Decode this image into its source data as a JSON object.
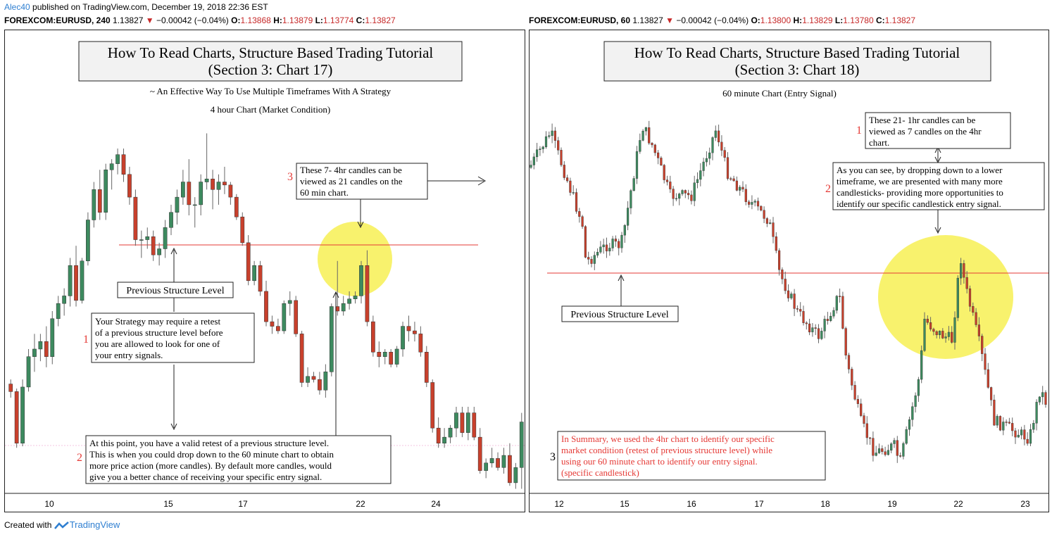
{
  "publisher": {
    "author": "Alec40",
    "text": "published on TradingView.com, December 19, 2018 22:36 EST"
  },
  "panels": [
    {
      "symbol": "FOREXCOM:EURUSD, 240",
      "price": "1.13827",
      "change": "−0.00042 (−0.04%)",
      "o": "1.13868",
      "h": "1.13879",
      "l": "1.13774",
      "c": "1.13827",
      "title_l1": "How To Read Charts, Structure Based Trading Tutorial",
      "title_l2": "(Section 3: Chart 17)",
      "subtitle": "~ An Effective Way To Use Multiple Timeframes With A Strategy",
      "subtitle2": "4 hour Chart (Market Condition)",
      "structure_label": "Previous Structure Level",
      "note1": [
        "Your Strategy may require a retest",
        "of a previous structure level before",
        "you are allowed to look for one of",
        "your entry signals."
      ],
      "note2": [
        "At this point, you have a valid retest of a previous structure level.",
        "This is when you could drop down to the 60 minute chart to obtain",
        "more price action (more candles). By default more candles, would",
        "give you a better chance of receiving your specific entry signal."
      ],
      "note3": [
        "These 7- 4hr candles can be",
        "viewed as 21 candles on the",
        "60 min chart."
      ],
      "n1": "1",
      "n2": "2",
      "n3": "3",
      "x_ticks": [
        "10",
        "15",
        "17",
        "22",
        "24"
      ]
    },
    {
      "symbol": "FOREXCOM:EURUSD, 60",
      "price": "1.13827",
      "change": "−0.00042 (−0.04%)",
      "o": "1.13800",
      "h": "1.13829",
      "l": "1.13780",
      "c": "1.13827",
      "title_l1": "How To Read Charts, Structure Based Trading Tutorial",
      "title_l2": "(Section 3: Chart 18)",
      "subtitle": "60 minute Chart (Entry Signal)",
      "structure_label": "Previous Structure Level",
      "note1": [
        "These 21- 1hr candles can be",
        "viewed as 7 candles on the 4hr",
        "chart."
      ],
      "note2": [
        "As you can see, by dropping down to a lower",
        "timeframe, we are presented with many more",
        "candlesticks- providing more opportunities to",
        "identify our specific candlestick entry signal."
      ],
      "note3": [
        "In Summary, we used the 4hr chart to identify our specific",
        "market condition (retest of previous structure level) while",
        "using our 60 minute chart to identify our entry signal.",
        "(specific candlestick)"
      ],
      "n1": "1",
      "n2": "2",
      "n3": "3",
      "x_ticks": [
        "12",
        "15",
        "16",
        "17",
        "18",
        "19",
        "22",
        "23"
      ]
    }
  ],
  "footer": {
    "created": "Created with",
    "brand": "TradingView"
  },
  "colors": {
    "up": "#3d8a5f",
    "down": "#c8402c",
    "structure": "#e53935",
    "highlight": "#f5ee3c"
  },
  "chart_data": [
    {
      "type": "candlestick",
      "series": [
        {
          "name": "EURUSD 240",
          "points": [
            [
              1.1387,
              1.139,
              1.1378,
              1.1382
            ],
            [
              1.1382,
              1.1384,
              1.1345,
              1.1348
            ],
            [
              1.1348,
              1.139,
              1.1346,
              1.1385
            ],
            [
              1.1385,
              1.141,
              1.1382,
              1.1405
            ],
            [
              1.1405,
              1.142,
              1.1395,
              1.141
            ],
            [
              1.141,
              1.142,
              1.1402,
              1.1415
            ],
            [
              1.1415,
              1.1425,
              1.1398,
              1.1405
            ],
            [
              1.1405,
              1.1435,
              1.14,
              1.143
            ],
            [
              1.143,
              1.1445,
              1.1425,
              1.144
            ],
            [
              1.144,
              1.145,
              1.1432,
              1.1445
            ],
            [
              1.1445,
              1.147,
              1.1438,
              1.1465
            ],
            [
              1.1465,
              1.1478,
              1.1438,
              1.1442
            ],
            [
              1.1442,
              1.147,
              1.144,
              1.1468
            ],
            [
              1.1468,
              1.15,
              1.1465,
              1.1495
            ],
            [
              1.1495,
              1.152,
              1.149,
              1.1515
            ],
            [
              1.1515,
              1.1528,
              1.1495,
              1.15
            ],
            [
              1.15,
              1.1532,
              1.1495,
              1.1528
            ],
            [
              1.1528,
              1.1535,
              1.1515,
              1.1532
            ],
            [
              1.1532,
              1.1542,
              1.1525,
              1.1538
            ],
            [
              1.1538,
              1.1542,
              1.152,
              1.1525
            ],
            [
              1.1525,
              1.153,
              1.1505,
              1.151
            ],
            [
              1.151,
              1.1515,
              1.1478,
              1.1482
            ],
            [
              1.1482,
              1.1488,
              1.147,
              1.1482
            ],
            [
              1.1482,
              1.149,
              1.1476,
              1.1484
            ],
            [
              1.1484,
              1.1488,
              1.1468,
              1.1472
            ],
            [
              1.1472,
              1.148,
              1.1465,
              1.1476
            ],
            [
              1.1476,
              1.1495,
              1.147,
              1.149
            ],
            [
              1.149,
              1.1505,
              1.1485,
              1.15
            ],
            [
              1.15,
              1.1515,
              1.1492,
              1.151
            ],
            [
              1.151,
              1.1528,
              1.1505,
              1.152
            ],
            [
              1.152,
              1.1535,
              1.1498,
              1.1505
            ],
            [
              1.1505,
              1.151,
              1.149,
              1.1505
            ],
            [
              1.1505,
              1.1525,
              1.1498,
              1.152
            ],
            [
              1.152,
              1.1552,
              1.1515,
              1.1522
            ],
            [
              1.1522,
              1.1528,
              1.1502,
              1.1515
            ],
            [
              1.1515,
              1.1525,
              1.1505,
              1.152
            ],
            [
              1.152,
              1.153,
              1.1512,
              1.1518
            ],
            [
              1.1518,
              1.152,
              1.1505,
              1.151
            ],
            [
              1.151,
              1.1512,
              1.1495,
              1.1497
            ],
            [
              1.1497,
              1.15,
              1.1478,
              1.148
            ],
            [
              1.148,
              1.1485,
              1.1452,
              1.1455
            ],
            [
              1.1455,
              1.1468,
              1.1452,
              1.1465
            ],
            [
              1.1465,
              1.1468,
              1.1445,
              1.1448
            ],
            [
              1.1448,
              1.1455,
              1.1425,
              1.1428
            ],
            [
              1.1428,
              1.1432,
              1.142,
              1.1425
            ],
            [
              1.1425,
              1.143,
              1.142,
              1.1422
            ],
            [
              1.1422,
              1.1442,
              1.142,
              1.144
            ],
            [
              1.144,
              1.1448,
              1.1432,
              1.1442
            ],
            [
              1.1442,
              1.1445,
              1.1418,
              1.142
            ],
            [
              1.142,
              1.1422,
              1.1385,
              1.1388
            ],
            [
              1.1388,
              1.1398,
              1.1385,
              1.1392
            ],
            [
              1.1392,
              1.1395,
              1.1388,
              1.139
            ],
            [
              1.139,
              1.1395,
              1.138,
              1.1383
            ],
            [
              1.1383,
              1.14,
              1.1378,
              1.1395
            ],
            [
              1.1395,
              1.144,
              1.1392,
              1.1438
            ],
            [
              1.1438,
              1.1468,
              1.1432,
              1.1435
            ],
            [
              1.1435,
              1.1445,
              1.1432,
              1.144
            ],
            [
              1.144,
              1.1448,
              1.1436,
              1.1443
            ],
            [
              1.1443,
              1.1448,
              1.144,
              1.1445
            ],
            [
              1.1445,
              1.1468,
              1.144,
              1.1465
            ],
            [
              1.1465,
              1.1475,
              1.1425,
              1.1428
            ],
            [
              1.1428,
              1.1432,
              1.1405,
              1.1408
            ],
            [
              1.1408,
              1.1415,
              1.1398,
              1.1405
            ],
            [
              1.1405,
              1.141,
              1.14,
              1.1408
            ],
            [
              1.1408,
              1.141,
              1.1398,
              1.14
            ],
            [
              1.14,
              1.1412,
              1.1398,
              1.141
            ],
            [
              1.141,
              1.1428,
              1.1405,
              1.1425
            ],
            [
              1.1425,
              1.1432,
              1.1415,
              1.1422
            ],
            [
              1.1422,
              1.1428,
              1.1415,
              1.142
            ],
            [
              1.142,
              1.1425,
              1.1405,
              1.1408
            ],
            [
              1.1408,
              1.1412,
              1.1385,
              1.1388
            ],
            [
              1.1388,
              1.139,
              1.1355,
              1.1358
            ],
            [
              1.1358,
              1.1365,
              1.1345,
              1.1348
            ],
            [
              1.1348,
              1.1358,
              1.1345,
              1.1352
            ],
            [
              1.1352,
              1.136,
              1.1348,
              1.1358
            ],
            [
              1.1358,
              1.1372,
              1.1352,
              1.1368
            ],
            [
              1.1368,
              1.1372,
              1.1352,
              1.1355
            ],
            [
              1.1355,
              1.1372,
              1.135,
              1.1368
            ],
            [
              1.1368,
              1.1372,
              1.135,
              1.1352
            ],
            [
              1.1352,
              1.1358,
              1.1328,
              1.133
            ],
            [
              1.133,
              1.1338,
              1.1325,
              1.1335
            ],
            [
              1.1335,
              1.1345,
              1.1332,
              1.1338
            ],
            [
              1.1338,
              1.1342,
              1.133,
              1.1332
            ],
            [
              1.1332,
              1.1345,
              1.1328,
              1.134
            ],
            [
              1.134,
              1.1348,
              1.132,
              1.1322
            ],
            [
              1.1322,
              1.1335,
              1.1318,
              1.1332
            ],
            [
              1.1332,
              1.1368,
              1.1318,
              1.1362
            ]
          ]
        }
      ],
      "x_ticks": [
        "10",
        "15",
        "17",
        "22",
        "24"
      ],
      "structure_level": 1.1452
    },
    {
      "type": "candlestick",
      "series": [
        {
          "name": "EURUSD 60",
          "points": "hourly candles from Dec 11 to Dec 23, showing rally, retest of the structure level near Dec 21-22, then decline"
        }
      ],
      "x_ticks": [
        "12",
        "15",
        "16",
        "17",
        "18",
        "19",
        "22",
        "23"
      ]
    }
  ]
}
